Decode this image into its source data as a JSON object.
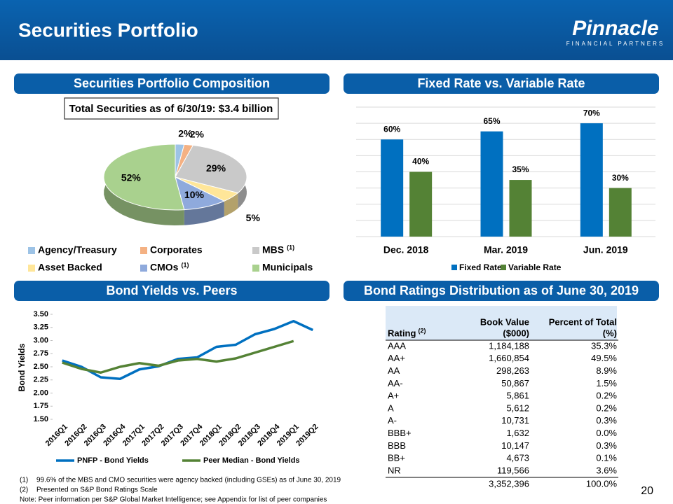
{
  "header": {
    "title": "Securities Portfolio",
    "logo": "Pinnacle",
    "logo_sub": "FINANCIAL PARTNERS",
    "page_number": "20"
  },
  "panels": [
    "Securities Portfolio Composition",
    "Fixed Rate vs. Variable Rate",
    "Bond Yields vs. Peers",
    "Bond Ratings Distribution as of June 30, 2019"
  ],
  "chart_data": [
    {
      "type": "pie",
      "subtitle": "Total Securities as of 6/30/19:  $3.4 billion",
      "categories": [
        "Agency/Treasury",
        "Corporates",
        "MBS",
        "Asset Backed",
        "CMOs",
        "Municipals"
      ],
      "legend_notes": [
        null,
        null,
        "(1)",
        null,
        "(1)",
        null
      ],
      "values": [
        2,
        2,
        29,
        5,
        10,
        52
      ],
      "value_labels": [
        "2%",
        "2%",
        "29%",
        "5%",
        "10%",
        "52%"
      ],
      "colors": [
        "#9dc3e6",
        "#f4b183",
        "#c9c9c9",
        "#ffe699",
        "#8faadc",
        "#a9d18e"
      ]
    },
    {
      "type": "bar",
      "categories": [
        "Dec. 2018",
        "Mar. 2019",
        "Jun. 2019"
      ],
      "series": [
        {
          "name": "Fixed Rate",
          "color": "#0070c0",
          "values": [
            60,
            65,
            70
          ],
          "value_labels": [
            "60%",
            "65%",
            "70%"
          ]
        },
        {
          "name": "Variable Rate",
          "color": "#548235",
          "values": [
            40,
            35,
            30
          ],
          "value_labels": [
            "40%",
            "35%",
            "30%"
          ]
        }
      ],
      "ylim": [
        0,
        80
      ],
      "yticks": [
        0,
        10,
        20,
        30,
        40,
        50,
        60,
        70,
        80
      ],
      "grid": true
    },
    {
      "type": "line",
      "y_label": "Bond Yields",
      "categories": [
        "2016Q1",
        "2016Q2",
        "2016Q3",
        "2016Q4",
        "2017Q1",
        "2017Q2",
        "2017Q3",
        "2017Q4",
        "2018Q1",
        "2018Q2",
        "2018Q3",
        "2018Q4",
        "2019Q1",
        "2019Q2"
      ],
      "series": [
        {
          "name": "PNFP - Bond Yields",
          "color": "#0070c0",
          "values": [
            2.62,
            2.5,
            2.3,
            2.27,
            2.45,
            2.51,
            2.65,
            2.68,
            2.88,
            2.92,
            3.12,
            3.22,
            3.37,
            3.2
          ]
        },
        {
          "name": "Peer Median - Bond Yields",
          "color": "#548235",
          "values": [
            2.58,
            2.46,
            2.39,
            2.5,
            2.57,
            2.52,
            2.62,
            2.65,
            2.6,
            2.66,
            2.77,
            2.88,
            2.99,
            null
          ]
        }
      ],
      "ylim": [
        1.5,
        3.5
      ],
      "yticks": [
        {
          "value": 1.5,
          "label": "1.50"
        },
        {
          "value": 1.75,
          "label": "1.75"
        },
        {
          "value": 2,
          "label": "2.00"
        },
        {
          "value": 2.25,
          "label": "2.25"
        },
        {
          "value": 2.5,
          "label": "2.50"
        },
        {
          "value": 2.75,
          "label": "2.75"
        },
        {
          "value": 3,
          "label": "3.00"
        },
        {
          "value": 3.25,
          "label": "3.25"
        },
        {
          "value": 3.5,
          "label": "3.50"
        }
      ]
    }
  ],
  "table": {
    "headers": [
      {
        "lines": [
          "Rating"
        ],
        "note": "(2)"
      },
      {
        "lines": [
          "Book Value",
          "($000)"
        ]
      },
      {
        "lines": [
          "Percent of Total",
          "(%)"
        ]
      }
    ],
    "rows": [
      [
        "AAA",
        "1,184,188",
        "35.3%"
      ],
      [
        "AA+",
        "1,660,854",
        "49.5%"
      ],
      [
        "AA",
        "298,263",
        "8.9%"
      ],
      [
        "AA-",
        "50,867",
        "1.5%"
      ],
      [
        "A+",
        "5,861",
        "0.2%"
      ],
      [
        "A",
        "5,612",
        "0.2%"
      ],
      [
        "A-",
        "10,731",
        "0.3%"
      ],
      [
        "BBB+",
        "1,632",
        "0.0%"
      ],
      [
        "BBB",
        "10,147",
        "0.3%"
      ],
      [
        "BB+",
        "4,673",
        "0.1%"
      ],
      [
        "NR",
        "119,566",
        "3.6%"
      ]
    ],
    "total": [
      "3,352,396",
      "100.0%"
    ]
  },
  "footnotes": [
    {
      "mark": "(1)",
      "text": "99.6% of the MBS and CMO securities were agency backed (including GSEs) as of June 30, 2019"
    },
    {
      "mark": "(2)",
      "text": "Presented on S&P Bond Ratings Scale"
    }
  ],
  "note": "Note:  Peer information per S&P Global Market Intelligence; see Appendix for list of peer companies"
}
